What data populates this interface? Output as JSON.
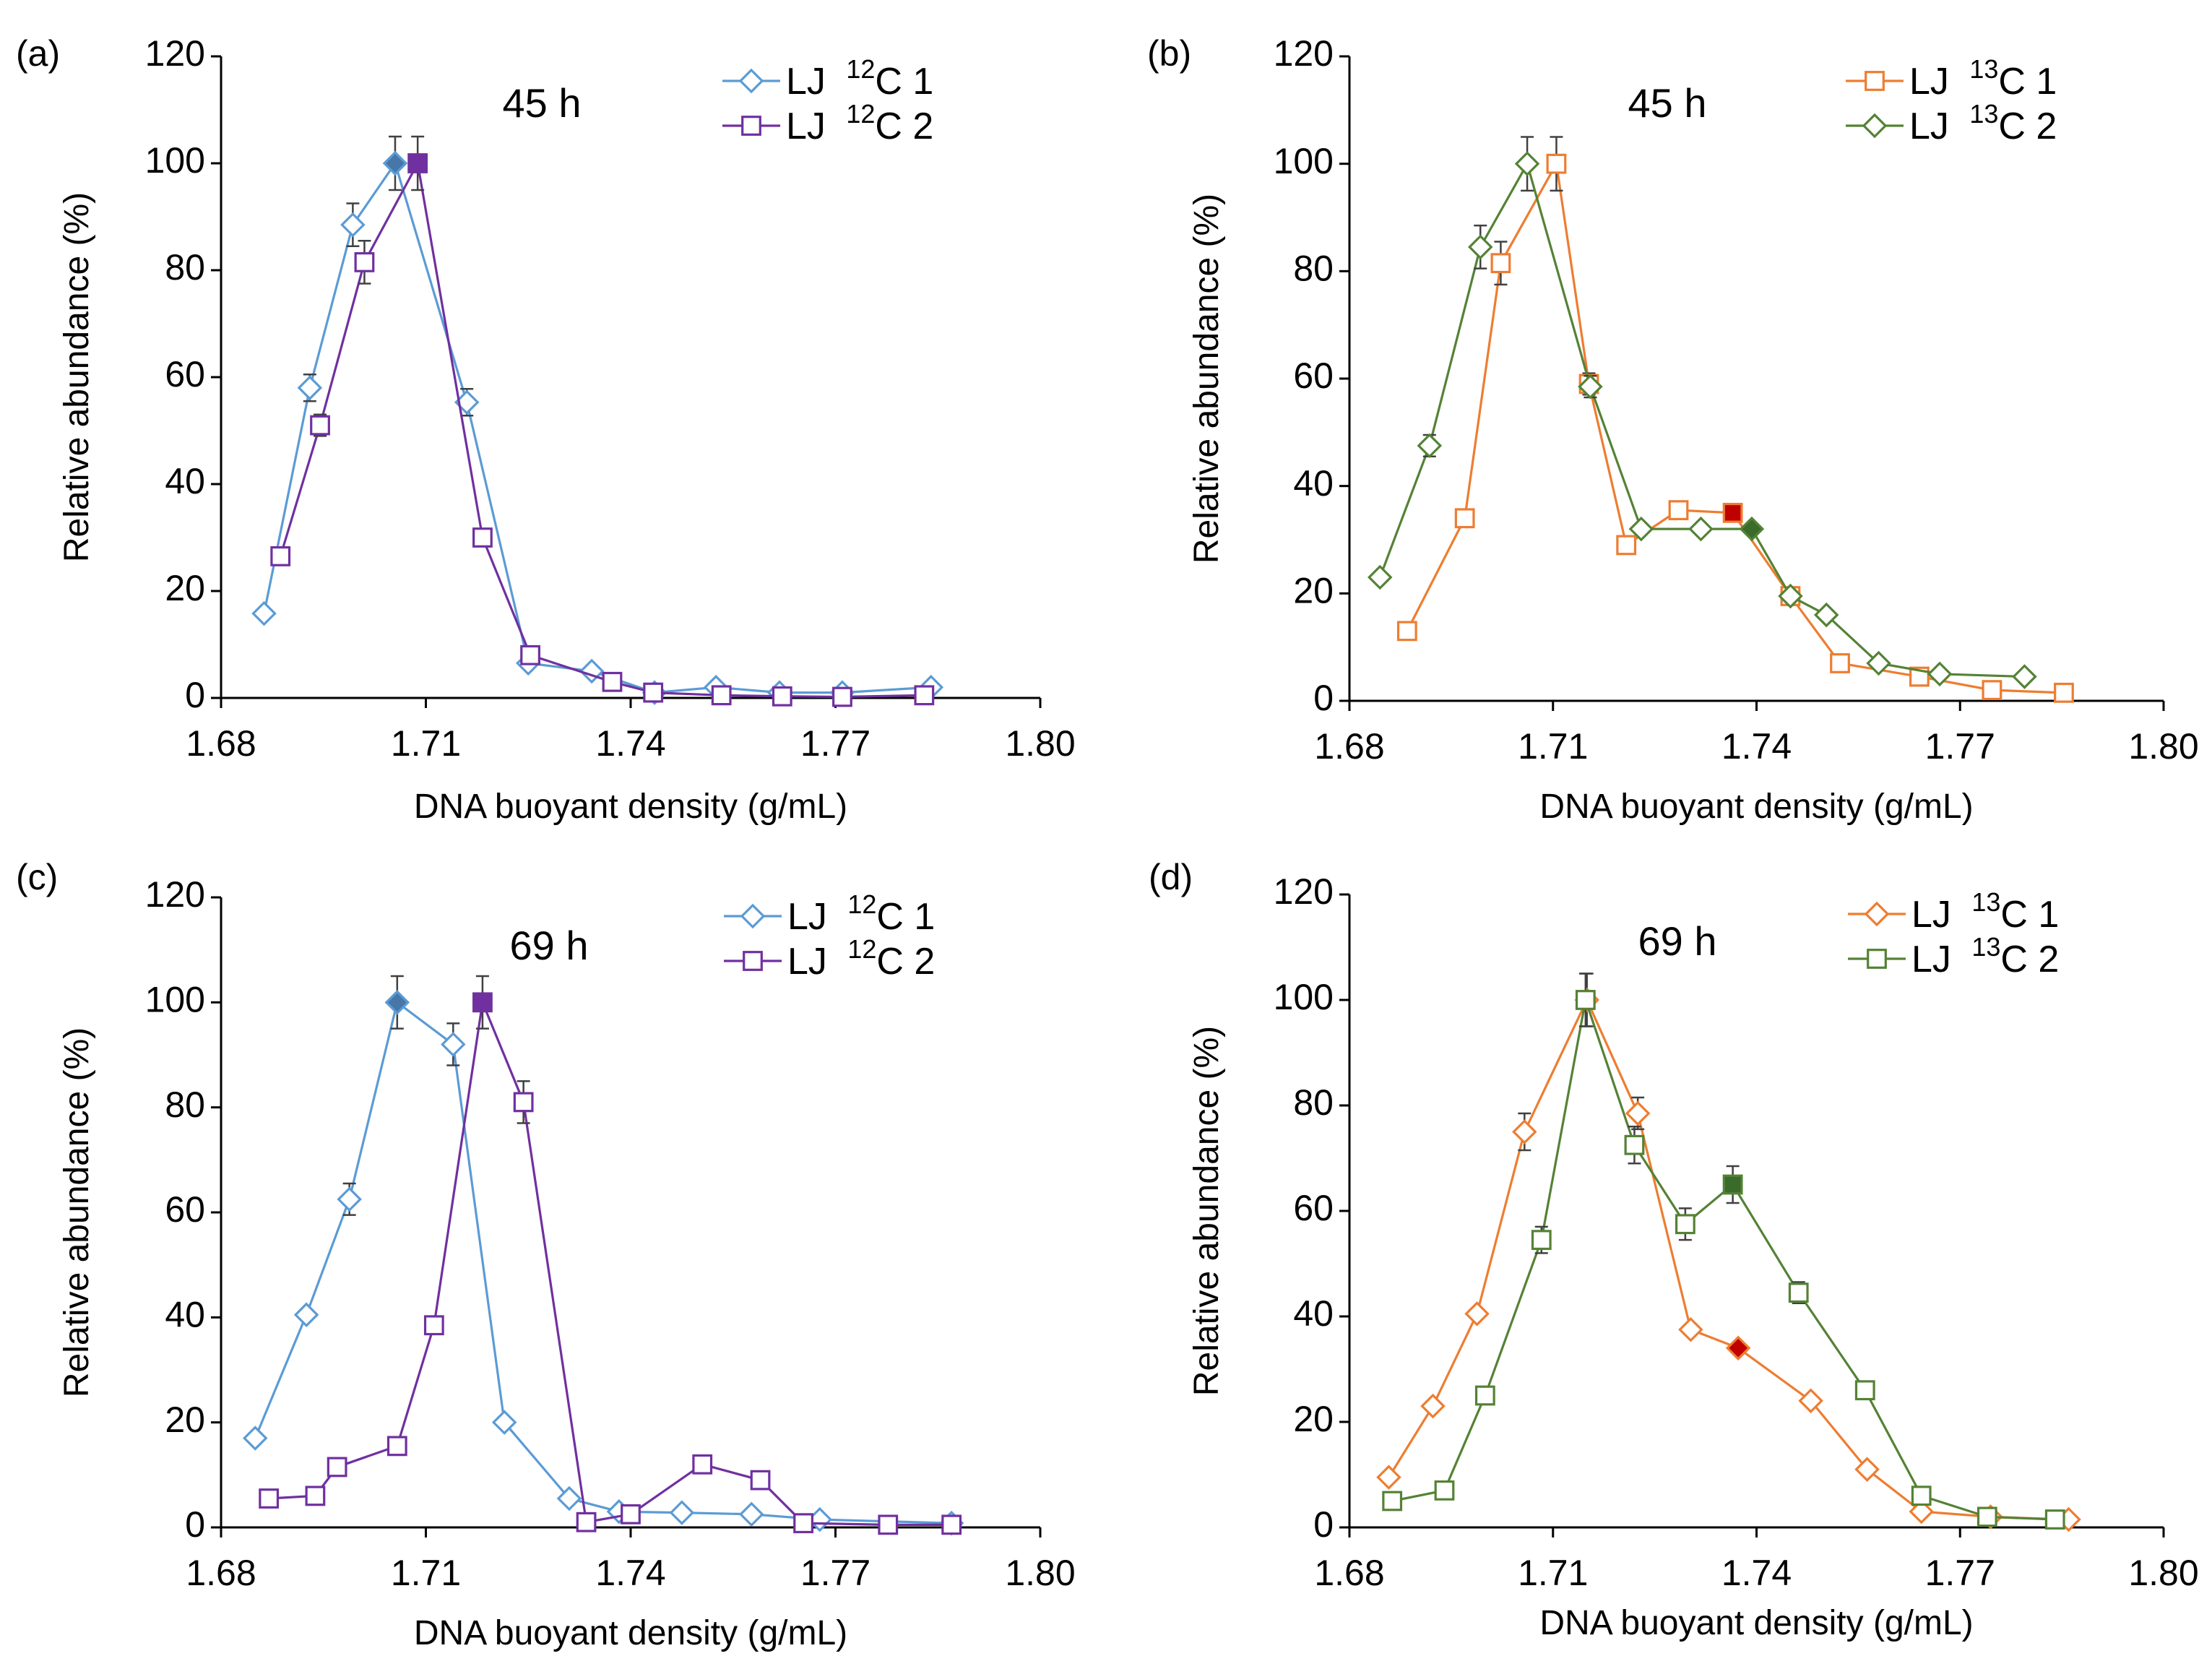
{
  "chart_data": [
    {
      "type": "line",
      "panel_label": "(a)",
      "annotation": "45 h",
      "xlabel": "DNA buoyant density (g/mL)",
      "ylabel": "Relative abundance (%)",
      "xlim": [
        1.68,
        1.8
      ],
      "ylim": [
        0,
        120
      ],
      "x_ticks": [
        "1.68",
        "1.71",
        "1.74",
        "1.77",
        "1.80"
      ],
      "y_ticks": [
        "0",
        "20",
        "40",
        "60",
        "80",
        "100",
        "120"
      ],
      "legend_position": "top-right",
      "series": [
        {
          "name_prefix": "LJ ",
          "name_sup": "12",
          "name_suffix": "C 1",
          "marker": "diamond",
          "color": "#5B9BD5",
          "x": [
            1.6863,
            1.693,
            1.6993,
            1.7055,
            1.716,
            1.725,
            1.7343,
            1.7435,
            1.7525,
            1.7618,
            1.771,
            1.784
          ],
          "y": [
            15.8,
            58,
            88.5,
            100,
            55.3,
            6.5,
            5,
            1,
            2,
            1,
            1,
            2
          ],
          "err": [
            0,
            2.5,
            4,
            5,
            2.5,
            0,
            0,
            0,
            0,
            0,
            0,
            0
          ],
          "highlight_index": 3,
          "highlight_color": "#4677A8"
        },
        {
          "name_prefix": "LJ ",
          "name_sup": "12",
          "name_suffix": "C 2",
          "marker": "square",
          "color": "#7030A0",
          "x": [
            1.6887,
            1.6945,
            1.701,
            1.7088,
            1.7183,
            1.7253,
            1.7373,
            1.7433,
            1.7533,
            1.7622,
            1.771,
            1.783
          ],
          "y": [
            26.5,
            51,
            81.5,
            100,
            30,
            8,
            3,
            1,
            0.5,
            0.3,
            0.2,
            0.5
          ],
          "err": [
            0,
            2,
            4,
            5,
            0,
            0,
            0,
            0,
            0,
            0,
            0,
            0
          ],
          "highlight_index": 3,
          "highlight_color": "#7030A0"
        }
      ]
    },
    {
      "type": "line",
      "panel_label": "(b)",
      "annotation": "45 h",
      "xlabel": "DNA buoyant density (g/mL)",
      "ylabel": "Relative abundance (%)",
      "xlim": [
        1.68,
        1.8
      ],
      "ylim": [
        0,
        120
      ],
      "x_ticks": [
        "1.68",
        "1.71",
        "1.74",
        "1.77",
        "1.80"
      ],
      "y_ticks": [
        "0",
        "20",
        "40",
        "60",
        "80",
        "100",
        "120"
      ],
      "legend_position": "top-right",
      "series": [
        {
          "name_prefix": "LJ ",
          "name_sup": "13",
          "name_suffix": "C 1",
          "marker": "square",
          "color": "#ED7D31",
          "x": [
            1.6885,
            1.697,
            1.7023,
            1.7105,
            1.7153,
            1.7208,
            1.7285,
            1.7365,
            1.745,
            1.7523,
            1.764,
            1.7747,
            1.7853
          ],
          "y": [
            13,
            34,
            81.5,
            100,
            59,
            29,
            35.5,
            35,
            19.5,
            7,
            4.5,
            2,
            1.5
          ],
          "err": [
            0,
            0,
            4,
            5,
            2,
            0,
            0,
            0,
            0,
            0,
            0,
            0,
            0
          ],
          "highlight_index": 7,
          "highlight_color": "#C00000"
        },
        {
          "name_prefix": "LJ ",
          "name_sup": "13",
          "name_suffix": "C 2",
          "marker": "diamond",
          "color": "#548235",
          "x": [
            1.6845,
            1.6918,
            1.6993,
            1.7062,
            1.7155,
            1.723,
            1.7318,
            1.7393,
            1.745,
            1.7503,
            1.758,
            1.767,
            1.7795
          ],
          "y": [
            23,
            47.5,
            84.5,
            100,
            58.5,
            32,
            32,
            32,
            19.5,
            16,
            7,
            5,
            4.5
          ],
          "err": [
            0,
            2,
            4,
            5,
            2,
            0,
            0,
            0,
            0,
            0,
            0,
            0,
            0
          ],
          "highlight_index": 7,
          "highlight_color": "#3A6B2A"
        }
      ]
    },
    {
      "type": "line",
      "panel_label": "(c)",
      "annotation": "69 h",
      "xlabel": "DNA buoyant density (g/mL)",
      "ylabel": "Relative abundance (%)",
      "xlim": [
        1.68,
        1.8
      ],
      "ylim": [
        0,
        120
      ],
      "x_ticks": [
        "1.68",
        "1.71",
        "1.74",
        "1.77",
        "1.80"
      ],
      "y_ticks": [
        "0",
        "20",
        "40",
        "60",
        "80",
        "100",
        "120"
      ],
      "legend_position": "top-right",
      "series": [
        {
          "name_prefix": "LJ ",
          "name_sup": "12",
          "name_suffix": "C 1",
          "marker": "diamond",
          "color": "#5B9BD5",
          "x": [
            1.685,
            1.6925,
            1.6988,
            1.7058,
            1.714,
            1.7215,
            1.731,
            1.7383,
            1.7475,
            1.7577,
            1.7677,
            1.787
          ],
          "y": [
            17,
            40.5,
            62.5,
            100,
            92,
            20,
            5.5,
            3,
            2.8,
            2.5,
            1.5,
            0.8
          ],
          "err": [
            0,
            0,
            3,
            5,
            4,
            0,
            0,
            0,
            0,
            0,
            0,
            0
          ],
          "highlight_index": 3,
          "highlight_color": "#4677A8"
        },
        {
          "name_prefix": "LJ ",
          "name_sup": "12",
          "name_suffix": "C 2",
          "marker": "square",
          "color": "#7030A0",
          "x": [
            1.687,
            1.6938,
            1.697,
            1.7058,
            1.7112,
            1.7183,
            1.7243,
            1.7335,
            1.74,
            1.7505,
            1.759,
            1.7653,
            1.7777,
            1.787
          ],
          "y": [
            5.5,
            6,
            11.5,
            15.5,
            38.5,
            100,
            81,
            1,
            2.5,
            12,
            9,
            0.8,
            0.5,
            0.5
          ],
          "err": [
            0,
            0,
            0,
            0,
            0,
            5,
            4,
            0,
            0,
            0,
            0,
            0,
            0,
            0
          ],
          "highlight_index": 5,
          "highlight_color": "#7030A0"
        }
      ]
    },
    {
      "type": "line",
      "panel_label": "(d)",
      "annotation": "69 h",
      "xlabel": "DNA buoyant density (g/mL)",
      "ylabel": "Relative abundance (%)",
      "xlim": [
        1.68,
        1.8
      ],
      "ylim": [
        0,
        120
      ],
      "x_ticks": [
        "1.68",
        "1.71",
        "1.74",
        "1.77",
        "1.80"
      ],
      "y_ticks": [
        "0",
        "20",
        "40",
        "60",
        "80",
        "100",
        "120"
      ],
      "legend_position": "top-right",
      "series": [
        {
          "name_prefix": "LJ ",
          "name_sup": "13",
          "name_suffix": "C 1",
          "marker": "diamond",
          "color": "#ED7D31",
          "x": [
            1.6858,
            1.6923,
            1.6988,
            1.7058,
            1.715,
            1.7225,
            1.7303,
            1.7373,
            1.748,
            1.7563,
            1.7643,
            1.7745,
            1.786
          ],
          "y": [
            9.5,
            23,
            40.5,
            75,
            100,
            78.5,
            37.5,
            34,
            24,
            11,
            3,
            2,
            1.5
          ],
          "err": [
            0,
            0,
            0,
            3.5,
            5,
            3,
            0,
            0,
            0,
            0,
            0,
            0,
            0
          ],
          "highlight_index": 7,
          "highlight_color": "#C00000"
        },
        {
          "name_prefix": "LJ ",
          "name_sup": "13",
          "name_suffix": "C 2",
          "marker": "square",
          "color": "#548235",
          "x": [
            1.6863,
            1.694,
            1.7,
            1.7083,
            1.7148,
            1.722,
            1.7295,
            1.7365,
            1.7462,
            1.756,
            1.7643,
            1.774,
            1.784
          ],
          "y": [
            5,
            7,
            25,
            54.5,
            100,
            72.5,
            57.5,
            65,
            44.5,
            26,
            6,
            2,
            1.5
          ],
          "err": [
            0,
            0,
            0,
            2.5,
            5,
            3.5,
            3,
            3.5,
            2,
            0,
            0,
            0,
            0
          ],
          "highlight_index": 7,
          "highlight_color": "#3A6B2A"
        }
      ]
    }
  ]
}
